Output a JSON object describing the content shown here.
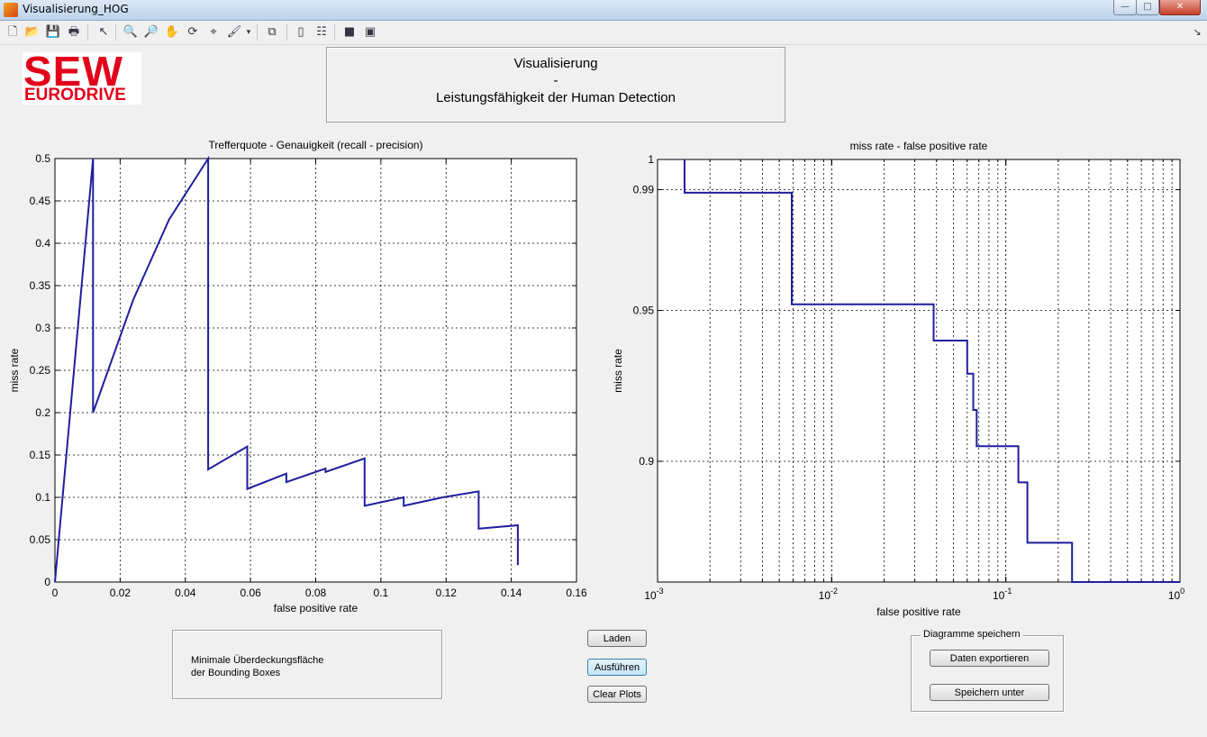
{
  "window": {
    "title": "Visualisierung_HOG",
    "minimize": "—",
    "maximize": "□",
    "close": "✕"
  },
  "toolbar": [
    {
      "name": "new-figure-icon",
      "glyph": "🗋"
    },
    {
      "name": "open-file-icon",
      "glyph": "📂"
    },
    {
      "name": "save-icon",
      "glyph": "💾"
    },
    {
      "name": "print-icon",
      "glyph": "🖶"
    },
    {
      "name": "edit-plot-pointer-icon",
      "glyph": "↖"
    },
    {
      "name": "zoom-in-icon",
      "glyph": "🔍"
    },
    {
      "name": "zoom-out-icon",
      "glyph": "🔎"
    },
    {
      "name": "pan-hand-icon",
      "glyph": "✋"
    },
    {
      "name": "rotate-3d-icon",
      "glyph": "⟳"
    },
    {
      "name": "data-cursor-icon",
      "glyph": "⌖"
    },
    {
      "name": "brush-icon",
      "glyph": "🖌"
    },
    {
      "name": "brush-dropdown-icon",
      "glyph": "▾"
    },
    {
      "name": "link-plot-icon",
      "glyph": "⧉"
    },
    {
      "name": "colorbar-icon",
      "glyph": "▯"
    },
    {
      "name": "legend-icon",
      "glyph": "☷"
    },
    {
      "name": "hide-plot-tools-icon",
      "glyph": "■"
    },
    {
      "name": "show-plot-tools-icon",
      "glyph": "▣"
    },
    {
      "name": "dock-arrow-icon",
      "glyph": "↘"
    }
  ],
  "logo": {
    "line1": "SEW",
    "line2": "EURODRIVE",
    "color": "#e2001a"
  },
  "header": {
    "line1": "Visualisierung",
    "line2": "-",
    "line3": "Leistungsfähigkeit der Human Detection"
  },
  "chart_data": [
    {
      "type": "line",
      "title": "Trefferquote - Genauigkeit (recall - precision)",
      "xlabel": "false positive rate",
      "ylabel": "miss rate",
      "xlim": [
        0,
        0.16
      ],
      "ylim": [
        0,
        0.5
      ],
      "xticks": [
        0,
        0.02,
        0.04,
        0.06,
        0.08,
        0.1,
        0.12,
        0.14,
        0.16
      ],
      "xticklabels": [
        "0",
        "0.02",
        "0.04",
        "0.06",
        "0.08",
        "0.1",
        "0.12",
        "0.14",
        "0.16"
      ],
      "yticks": [
        0,
        0.05,
        0.1,
        0.15,
        0.2,
        0.25,
        0.3,
        0.35,
        0.4,
        0.45,
        0.5
      ],
      "yticklabels": [
        "0",
        "0.05",
        "0.1",
        "0.15",
        "0.2",
        "0.25",
        "0.3",
        "0.35",
        "0.4",
        "0.45",
        "0.5"
      ],
      "grid": true,
      "color": "#1f1f9e",
      "series": [
        {
          "x": [
            0,
            0.0117,
            0.0117,
            0.024,
            0.035,
            0.047,
            0.047,
            0.059,
            0.059,
            0.071,
            0.071,
            0.083,
            0.083,
            0.095,
            0.095,
            0.107,
            0.107,
            0.119,
            0.13,
            0.13,
            0.142,
            0.142
          ],
          "y": [
            0,
            0.5,
            0.2,
            0.333,
            0.428,
            0.5,
            0.133,
            0.16,
            0.11,
            0.128,
            0.118,
            0.134,
            0.13,
            0.146,
            0.09,
            0.1,
            0.09,
            0.1,
            0.107,
            0.063,
            0.067,
            0.02
          ]
        }
      ]
    },
    {
      "type": "line",
      "title": "miss rate - false positive rate",
      "xlabel": "false positive rate",
      "ylabel": "miss rate",
      "xscale": "log",
      "xlim": [
        0.001,
        1
      ],
      "ylim": [
        0.86,
        1
      ],
      "xticklabels": [
        {
          "base": "10",
          "exp": "-3"
        },
        {
          "base": "10",
          "exp": "-2"
        },
        {
          "base": "10",
          "exp": "-1"
        },
        {
          "base": "10",
          "exp": "0"
        }
      ],
      "yticks": [
        0.9,
        0.95,
        0.99,
        1
      ],
      "yticklabels": [
        "0.9",
        "0.95",
        "0.99",
        "1"
      ],
      "grid": true,
      "color": "#1f1f9e",
      "series": [
        {
          "x": [
            0.00143,
            0.00143,
            0.0059,
            0.0059,
            0.0385,
            0.0385,
            0.06,
            0.06,
            0.065,
            0.065,
            0.068,
            0.068,
            0.118,
            0.118,
            0.133,
            0.133,
            0.24,
            0.24,
            1
          ],
          "y": [
            1,
            0.989,
            0.989,
            0.952,
            0.952,
            0.94,
            0.94,
            0.929,
            0.929,
            0.917,
            0.917,
            0.905,
            0.905,
            0.893,
            0.893,
            0.873,
            0.873,
            0.86,
            0.86
          ]
        }
      ]
    }
  ],
  "overlap_box": {
    "line1": "Minimale Überdeckungsfläche",
    "line2": "der Bounding Boxes"
  },
  "buttons": {
    "load": "Laden",
    "run": "Ausführen",
    "clear": "Clear Plots"
  },
  "save_group": {
    "label": "Diagramme speichern",
    "export": "Daten exportieren",
    "save_as": "Speichern unter"
  }
}
